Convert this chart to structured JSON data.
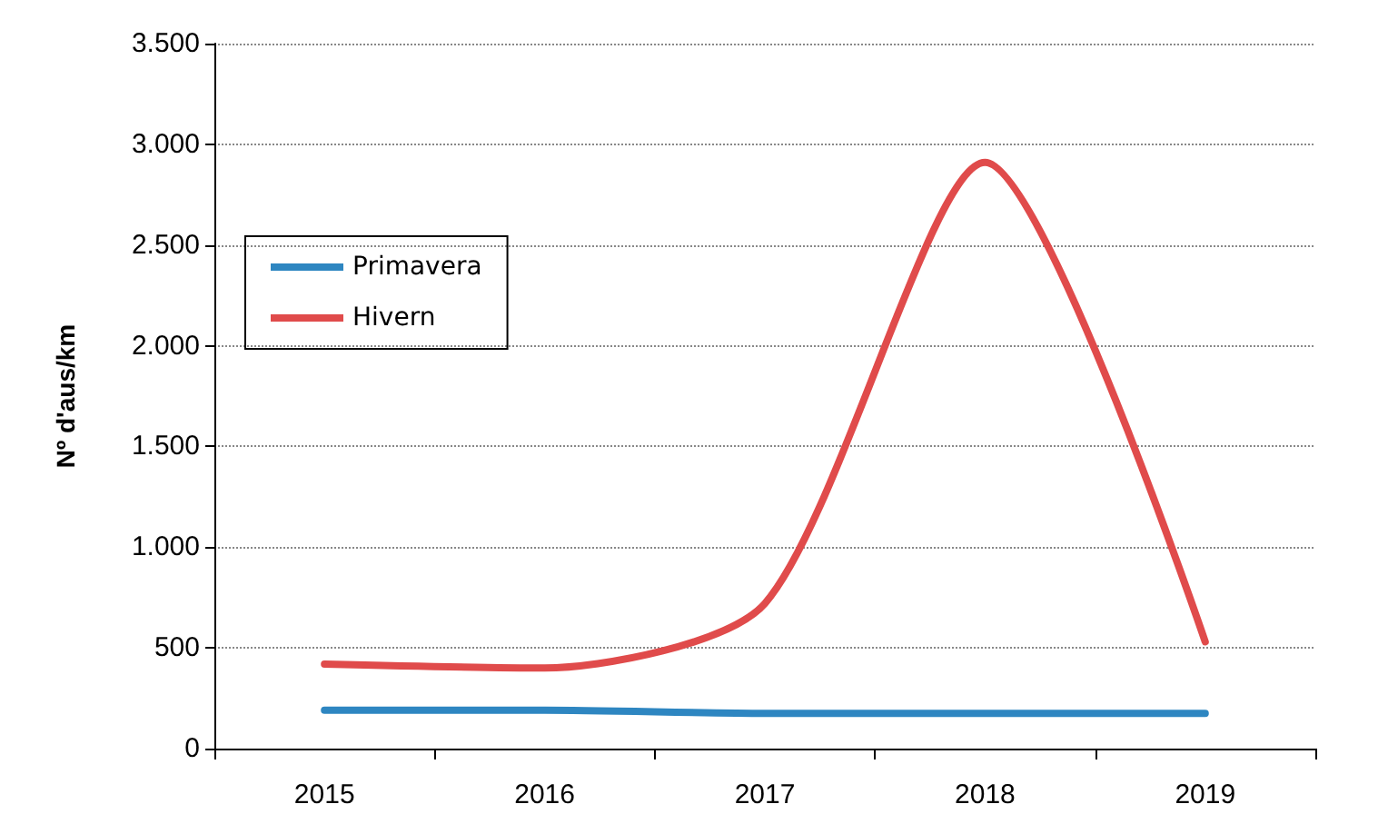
{
  "chart_data": {
    "type": "line",
    "ylabel": "Nº d'aus/km",
    "categories": [
      "2015",
      "2016",
      "2017",
      "2018",
      "2019"
    ],
    "series": [
      {
        "name": "Primavera",
        "color": "#2e86c1",
        "values": [
          190,
          190,
          175,
          175,
          175
        ]
      },
      {
        "name": "Hivern",
        "color": "#e04b4b",
        "values": [
          420,
          400,
          720,
          2910,
          530
        ]
      }
    ],
    "ylim": [
      0,
      3500
    ],
    "yticks": [
      0,
      {
        "value": 500,
        "label": "500"
      },
      {
        "value": 1000,
        "label": "1.000"
      },
      {
        "value": 1500,
        "label": "1.500"
      },
      {
        "value": 2000,
        "label": "2.000"
      },
      {
        "value": 2500,
        "label": "2.500"
      },
      {
        "value": 3000,
        "label": "3.000"
      },
      {
        "value": 3500,
        "label": "3.500"
      }
    ],
    "grid": "y",
    "legend": "top left",
    "marker": "none",
    "line_style": "solid"
  }
}
